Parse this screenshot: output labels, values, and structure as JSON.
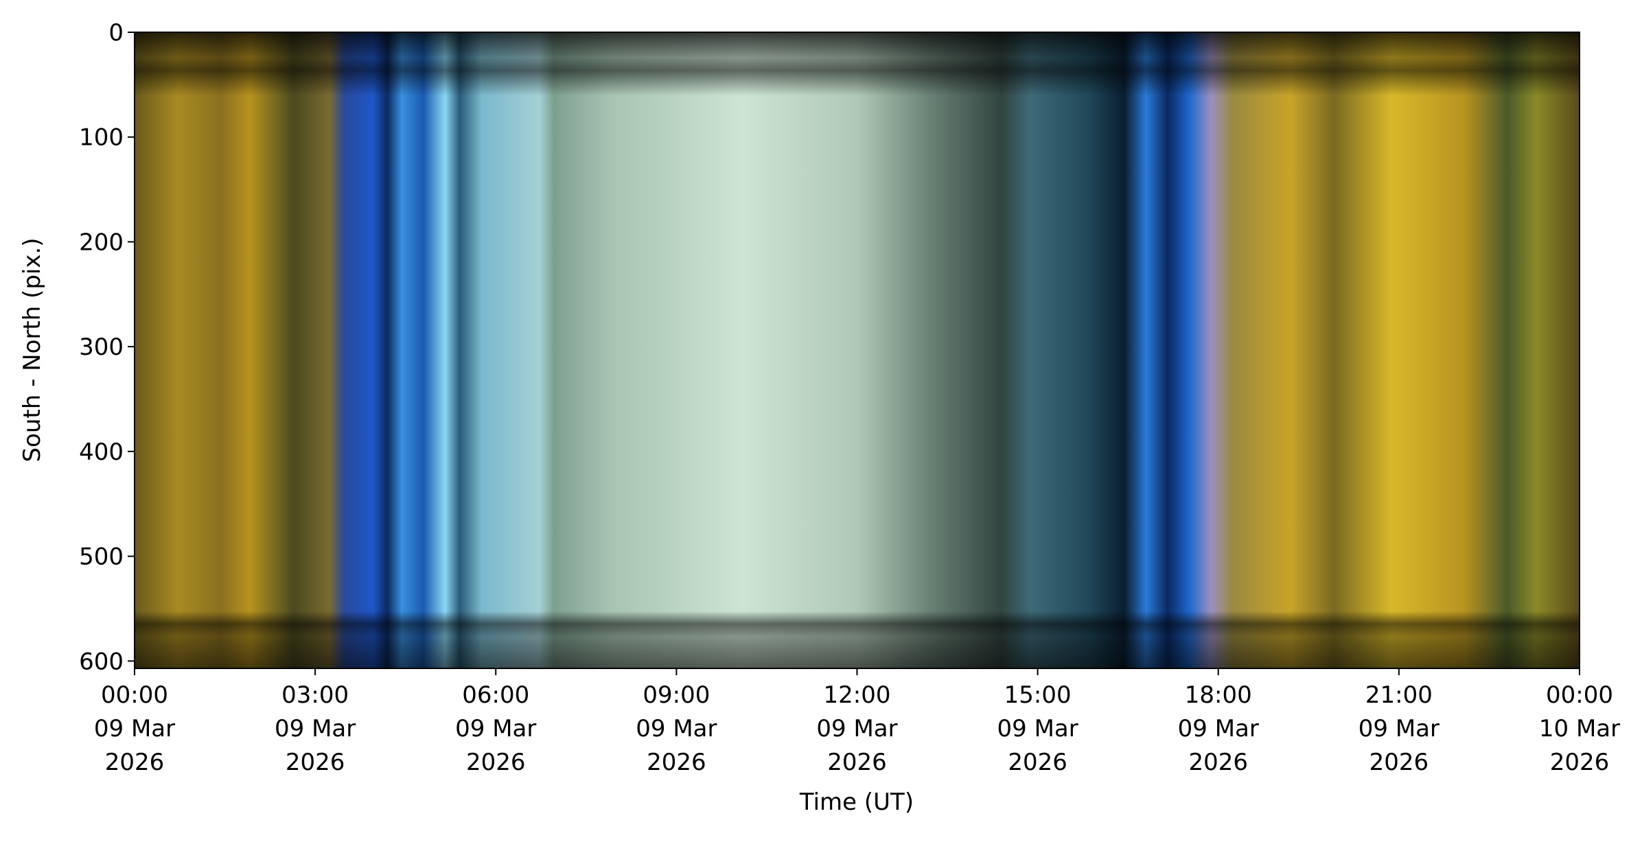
{
  "chart_data": {
    "type": "keogram",
    "xlabel": "Time (UT)",
    "ylabel": "South - North (pix.)",
    "xlim": [
      0,
      24
    ],
    "ylim": [
      607,
      0
    ],
    "xticks": [
      {
        "value": 0,
        "label": [
          "00:00",
          "09 Mar",
          "2026"
        ]
      },
      {
        "value": 3,
        "label": [
          "03:00",
          "09 Mar",
          "2026"
        ]
      },
      {
        "value": 6,
        "label": [
          "06:00",
          "09 Mar",
          "2026"
        ]
      },
      {
        "value": 9,
        "label": [
          "09:00",
          "09 Mar",
          "2026"
        ]
      },
      {
        "value": 12,
        "label": [
          "12:00",
          "09 Mar",
          "2026"
        ]
      },
      {
        "value": 15,
        "label": [
          "15:00",
          "09 Mar",
          "2026"
        ]
      },
      {
        "value": 18,
        "label": [
          "18:00",
          "09 Mar",
          "2026"
        ]
      },
      {
        "value": 21,
        "label": [
          "21:00",
          "09 Mar",
          "2026"
        ]
      },
      {
        "value": 24,
        "label": [
          "00:00",
          "10 Mar",
          "2026"
        ]
      }
    ],
    "yticks": [
      0,
      100,
      200,
      300,
      400,
      500,
      600
    ]
  }
}
